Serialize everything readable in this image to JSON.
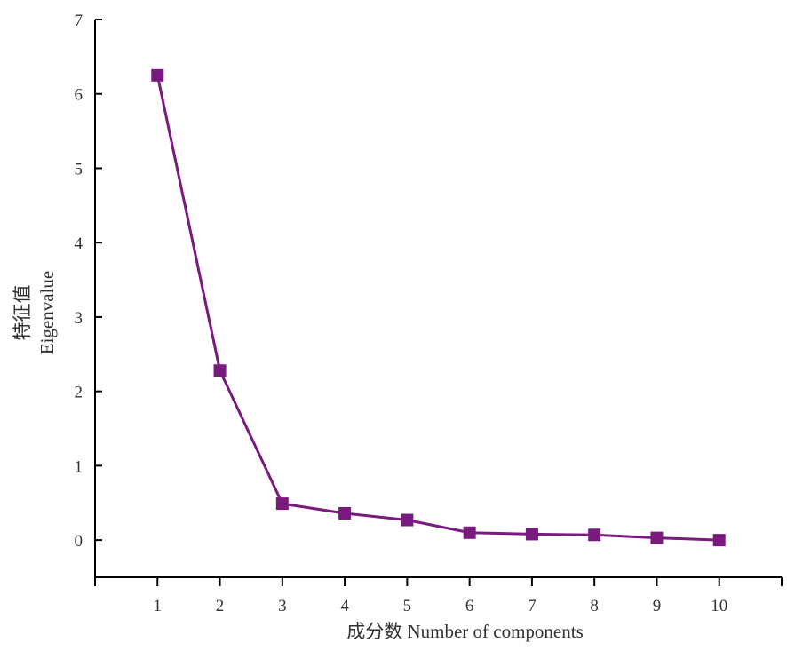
{
  "chart_data": {
    "type": "line",
    "title": "",
    "xlabel": "成分数 Number of components",
    "ylabel_line1": "特征值",
    "ylabel_line2": "Eigenvalue",
    "x": [
      1,
      2,
      3,
      4,
      5,
      6,
      7,
      8,
      9,
      10
    ],
    "series": [
      {
        "values": [
          6.25,
          2.28,
          0.49,
          0.36,
          0.27,
          0.1,
          0.08,
          0.07,
          0.03,
          0.0
        ],
        "color": "#7a1a7e",
        "marker": "square"
      }
    ],
    "xlim": [
      0,
      11
    ],
    "ylim": [
      -0.5,
      7
    ],
    "xticks": [
      1,
      2,
      3,
      4,
      5,
      6,
      7,
      8,
      9,
      10
    ],
    "yticks": [
      0,
      1,
      2,
      3,
      4,
      5,
      6,
      7
    ],
    "grid": false,
    "legend": "none"
  }
}
